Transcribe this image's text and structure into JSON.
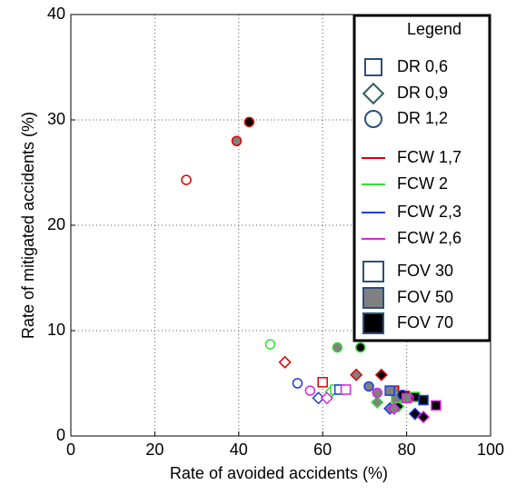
{
  "chart_data": {
    "type": "scatter",
    "xlabel": "Rate of avoided accidents (%)",
    "ylabel": "Rate of mitigated accidents (%)",
    "xlim": [
      0,
      100
    ],
    "xticks": [
      0,
      20,
      40,
      60,
      80,
      100
    ],
    "ylim": [
      0,
      40
    ],
    "yticks": [
      0,
      10,
      20,
      30,
      40
    ],
    "grid": true,
    "points": [
      {
        "x": 27.5,
        "y": 24.3,
        "marker": "circle",
        "edge": "#e00000",
        "face": "#ffffff"
      },
      {
        "x": 39.5,
        "y": 28,
        "marker": "circle",
        "edge": "#e00000",
        "face": "#808080"
      },
      {
        "x": 42.5,
        "y": 29.8,
        "marker": "circle",
        "edge": "#e00000",
        "face": "#000000"
      },
      {
        "x": 51,
        "y": 7,
        "marker": "diamond",
        "edge": "#e00000",
        "face": "#ffffff"
      },
      {
        "x": 68,
        "y": 5.8,
        "marker": "diamond",
        "edge": "#e00000",
        "face": "#808080"
      },
      {
        "x": 74,
        "y": 5.8,
        "marker": "diamond",
        "edge": "#e00000",
        "face": "#000000"
      },
      {
        "x": 60,
        "y": 5.1,
        "marker": "square",
        "edge": "#e00000",
        "face": "#ffffff"
      },
      {
        "x": 77,
        "y": 4.3,
        "marker": "square",
        "edge": "#e00000",
        "face": "#808080"
      },
      {
        "x": 79.5,
        "y": 3.8,
        "marker": "square",
        "edge": "#e00000",
        "face": "#000000"
      },
      {
        "x": 47.5,
        "y": 8.7,
        "marker": "circle",
        "edge": "#33dd33",
        "face": "#ffffff"
      },
      {
        "x": 63.5,
        "y": 8.4,
        "marker": "circle",
        "edge": "#33dd33",
        "face": "#808080"
      },
      {
        "x": 69,
        "y": 8.4,
        "marker": "circle",
        "edge": "#33dd33",
        "face": "#000000"
      },
      {
        "x": 62,
        "y": 4.2,
        "marker": "diamond",
        "edge": "#33dd33",
        "face": "#ffffff"
      },
      {
        "x": 73,
        "y": 3.2,
        "marker": "diamond",
        "edge": "#33dd33",
        "face": "#808080"
      },
      {
        "x": 78,
        "y": 2.8,
        "marker": "diamond",
        "edge": "#33dd33",
        "face": "#000000"
      },
      {
        "x": 63,
        "y": 4.4,
        "marker": "square",
        "edge": "#33dd33",
        "face": "#ffffff"
      },
      {
        "x": 77.5,
        "y": 3.6,
        "marker": "square",
        "edge": "#33dd33",
        "face": "#808080"
      },
      {
        "x": 82,
        "y": 3.7,
        "marker": "square",
        "edge": "#33dd33",
        "face": "#000000"
      },
      {
        "x": 54,
        "y": 5,
        "marker": "circle",
        "edge": "#1a3cdd",
        "face": "#ffffff"
      },
      {
        "x": 71,
        "y": 4.7,
        "marker": "circle",
        "edge": "#1a3cdd",
        "face": "#808080"
      },
      {
        "x": 79,
        "y": 3.9,
        "marker": "circle",
        "edge": "#1a3cdd",
        "face": "#000000"
      },
      {
        "x": 59,
        "y": 3.6,
        "marker": "diamond",
        "edge": "#1a3cdd",
        "face": "#ffffff"
      },
      {
        "x": 76,
        "y": 2.6,
        "marker": "diamond",
        "edge": "#1a3cdd",
        "face": "#808080"
      },
      {
        "x": 82,
        "y": 2.1,
        "marker": "diamond",
        "edge": "#1a3cdd",
        "face": "#000000"
      },
      {
        "x": 64,
        "y": 4.4,
        "marker": "square",
        "edge": "#1a3cdd",
        "face": "#ffffff"
      },
      {
        "x": 76,
        "y": 4.3,
        "marker": "square",
        "edge": "#1a3cdd",
        "face": "#808080"
      },
      {
        "x": 84,
        "y": 3.4,
        "marker": "square",
        "edge": "#1a3cdd",
        "face": "#000000"
      },
      {
        "x": 57,
        "y": 4.3,
        "marker": "circle",
        "edge": "#dd22dd",
        "face": "#ffffff"
      },
      {
        "x": 73,
        "y": 4.1,
        "marker": "circle",
        "edge": "#dd22dd",
        "face": "#808080"
      },
      {
        "x": 80.5,
        "y": 3.6,
        "marker": "circle",
        "edge": "#dd22dd",
        "face": "#000000"
      },
      {
        "x": 61,
        "y": 3.6,
        "marker": "diamond",
        "edge": "#dd22dd",
        "face": "#ffffff"
      },
      {
        "x": 77,
        "y": 2.6,
        "marker": "diamond",
        "edge": "#dd22dd",
        "face": "#808080"
      },
      {
        "x": 84,
        "y": 1.8,
        "marker": "diamond",
        "edge": "#dd22dd",
        "face": "#000000"
      },
      {
        "x": 65.5,
        "y": 4.4,
        "marker": "square",
        "edge": "#dd22dd",
        "face": "#ffffff"
      },
      {
        "x": 80,
        "y": 3.6,
        "marker": "square",
        "edge": "#dd22dd",
        "face": "#808080"
      },
      {
        "x": 87,
        "y": 2.9,
        "marker": "square",
        "edge": "#dd22dd",
        "face": "#000000"
      }
    ],
    "legend": {
      "title": "Legend",
      "entries": [
        {
          "label": "DR 0,6",
          "marker": "square",
          "edge": "#2c4f7c",
          "face": "#ffffff"
        },
        {
          "label": "DR 0,9",
          "marker": "diamond",
          "edge": "#2c5f5f",
          "face": "#ffffff"
        },
        {
          "label": "DR 1,2",
          "marker": "circle",
          "edge": "#2c4f7c",
          "face": "#ffffff"
        },
        {
          "label": "FCW 1,7",
          "line": "#e00000"
        },
        {
          "label": "FCW 2",
          "line": "#33dd33"
        },
        {
          "label": "FCW 2,3",
          "line": "#1a3cdd"
        },
        {
          "label": "FCW 2,6",
          "line": "#dd22dd"
        },
        {
          "label": "FOV 30",
          "marker": "square",
          "edge": "#2c4f7c",
          "face": "#ffffff"
        },
        {
          "label": "FOV 50",
          "marker": "square",
          "edge": "#2c4f7c",
          "face": "#808080"
        },
        {
          "label": "FOV 70",
          "marker": "square",
          "edge": "#2c4f7c",
          "face": "#000000"
        }
      ]
    }
  }
}
